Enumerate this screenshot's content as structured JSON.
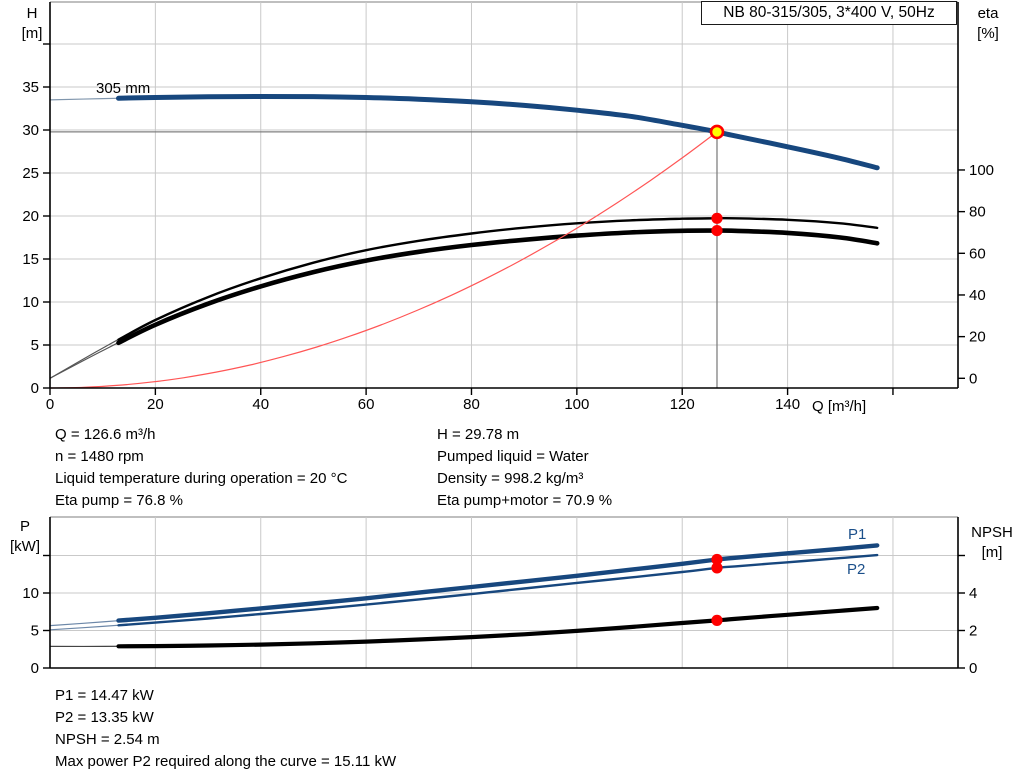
{
  "title_box": {
    "label": "NB 80-315/305, 3*400 V, 50Hz"
  },
  "labels": {
    "h": "H",
    "h_unit": "[m]",
    "eta": "eta",
    "eta_unit": "[%]",
    "q": "Q [m³/h]",
    "p": "P",
    "p_unit": "[kW]",
    "npsh": "NPSH",
    "npsh_unit": "[m]"
  },
  "colors": {
    "curve_blue": "#17477e",
    "curve_black": "#000000",
    "system_red": "#ff5555",
    "marker_red": "#fe0000",
    "duty_yellow": "#ffff00",
    "grid": "#c9c9c9",
    "duty_line": "#808080",
    "label_blue": "#1b4f8a",
    "frame": "#999999",
    "axis": "#000000"
  },
  "info_top": {
    "left": [
      "Q = 126.6 m³/h",
      "n = 1480 rpm",
      "Liquid temperature during operation = 20 °C",
      "Eta pump = 76.8 %"
    ],
    "right": [
      "H = 29.78 m",
      "Pumped liquid = Water",
      "Density = 998.2 kg/m³",
      "Eta pump+motor = 70.9 %"
    ]
  },
  "info_bottom": [
    "P1 = 14.47 kW",
    "P2 = 13.35 kW",
    "NPSH = 2.54 m",
    "Max power P2 required along the curve = 15.11 kW"
  ],
  "chart_data": [
    {
      "type": "line",
      "title": "QH curve with efficiency curves",
      "grid_on": true,
      "legend_position": "none",
      "x": {
        "label": "Q [m³/h]",
        "min": 0,
        "max": 172,
        "ticks": [
          0,
          20,
          40,
          60,
          80,
          100,
          120,
          140
        ],
        "ticks_unlabeled": [
          160
        ],
        "grid": [
          20,
          40,
          60,
          80,
          100,
          120,
          140,
          160
        ]
      },
      "y_left": {
        "label": "H [m]",
        "min": 0,
        "max": 45,
        "ticks": [
          0,
          5,
          10,
          15,
          20,
          25,
          30,
          35
        ],
        "ticks_unlabeled": [
          40
        ],
        "grid": [
          5,
          10,
          15,
          20,
          25,
          30,
          35,
          40
        ]
      },
      "y_right": {
        "label": "eta [%]",
        "min": 0,
        "max": 100,
        "ticks": [
          0,
          20,
          40,
          60,
          80,
          100
        ],
        "ticks_unlabeled": []
      },
      "series": [
        {
          "name": "305 mm",
          "axis": "H",
          "color": "curve_blue",
          "width": 5,
          "thin_color": "#8096ad",
          "thick_from": 13,
          "points": [
            [
              0,
              33.5
            ],
            [
              10,
              33.65
            ],
            [
              20,
              33.78
            ],
            [
              30,
              33.86
            ],
            [
              40,
              33.9
            ],
            [
              50,
              33.88
            ],
            [
              60,
              33.78
            ],
            [
              70,
              33.58
            ],
            [
              80,
              33.28
            ],
            [
              90,
              32.86
            ],
            [
              100,
              32.3
            ],
            [
              110,
              31.6
            ],
            [
              120,
              30.55
            ],
            [
              126.6,
              29.78
            ],
            [
              130,
              29.32
            ],
            [
              140,
              28.05
            ],
            [
              150,
              26.7
            ],
            [
              157,
              25.6
            ]
          ]
        },
        {
          "name": "eta pump",
          "axis": "eta",
          "color": "curve_black",
          "width": 2.4,
          "thin_color": "#555555",
          "thick_from": 13,
          "points": [
            [
              0,
              0
            ],
            [
              10,
              14.5
            ],
            [
              20,
              28
            ],
            [
              30,
              39
            ],
            [
              40,
              48
            ],
            [
              50,
              55.5
            ],
            [
              60,
              61.5
            ],
            [
              70,
              66
            ],
            [
              80,
              69.5
            ],
            [
              90,
              72.3
            ],
            [
              100,
              74.4
            ],
            [
              110,
              75.8
            ],
            [
              120,
              76.6
            ],
            [
              126.6,
              76.8
            ],
            [
              130,
              76.8
            ],
            [
              140,
              76.1
            ],
            [
              150,
              74.4
            ],
            [
              157,
              72.2
            ]
          ]
        },
        {
          "name": "eta pump+motor",
          "axis": "eta",
          "color": "curve_black",
          "width": 4.6,
          "thin_color": "#555555",
          "thick_from": 13,
          "points": [
            [
              0,
              0
            ],
            [
              10,
              13.3
            ],
            [
              20,
              25.7
            ],
            [
              30,
              35.8
            ],
            [
              40,
              44.1
            ],
            [
              50,
              51
            ],
            [
              60,
              56.5
            ],
            [
              70,
              60.7
            ],
            [
              80,
              64
            ],
            [
              90,
              66.5
            ],
            [
              100,
              68.5
            ],
            [
              110,
              70
            ],
            [
              120,
              70.8
            ],
            [
              126.6,
              70.9
            ],
            [
              130,
              70.8
            ],
            [
              140,
              69.8
            ],
            [
              150,
              67.6
            ],
            [
              157,
              64.8
            ]
          ]
        },
        {
          "name": "system curve",
          "axis": "H",
          "color": "system_red",
          "width": 1.1,
          "generate": "parabola",
          "q_end": 126.6,
          "h_end": 29.78
        }
      ],
      "duty_point": {
        "q": 126.6,
        "axis": "H",
        "value": 29.78
      },
      "markers": [
        {
          "q": 126.6,
          "axis": "eta",
          "value": 76.8
        },
        {
          "q": 126.6,
          "axis": "eta",
          "value": 70.9
        }
      ]
    },
    {
      "type": "line",
      "title": "Power and NPSH curves",
      "grid_on": true,
      "legend_position": "inline",
      "x": {
        "label": "",
        "min": 0,
        "max": 172,
        "ticks": [],
        "ticks_unlabeled": [],
        "grid": [
          20,
          40,
          60,
          80,
          100,
          120,
          140,
          160
        ]
      },
      "y_left": {
        "label": "P [kW]",
        "min": 0,
        "max": 20,
        "ticks": [
          0,
          5,
          10
        ],
        "ticks_unlabeled": [
          15
        ],
        "grid": [
          5,
          10,
          15
        ]
      },
      "y_right": {
        "label": "NPSH [m]",
        "min": 0,
        "max": 8,
        "ticks": [
          0,
          2,
          4
        ],
        "ticks_unlabeled": [
          6
        ]
      },
      "series": [
        {
          "name": "P1",
          "axis": "P",
          "color": "curve_blue",
          "width": 4.4,
          "thin_color": "#6c87a8",
          "thick_from": 13,
          "points": [
            [
              0,
              5.65
            ],
            [
              10,
              6.15
            ],
            [
              20,
              6.7
            ],
            [
              30,
              7.3
            ],
            [
              40,
              7.95
            ],
            [
              50,
              8.6
            ],
            [
              60,
              9.3
            ],
            [
              70,
              10.05
            ],
            [
              80,
              10.8
            ],
            [
              90,
              11.55
            ],
            [
              100,
              12.3
            ],
            [
              110,
              13.1
            ],
            [
              120,
              13.9
            ],
            [
              126.6,
              14.47
            ],
            [
              130,
              14.7
            ],
            [
              140,
              15.3
            ],
            [
              150,
              15.9
            ],
            [
              157,
              16.35
            ]
          ]
        },
        {
          "name": "P2",
          "axis": "P",
          "color": "curve_blue",
          "width": 2.4,
          "thin_color": "#6c87a8",
          "thick_from": 13,
          "points": [
            [
              0,
              5.1
            ],
            [
              10,
              5.55
            ],
            [
              20,
              6.05
            ],
            [
              30,
              6.6
            ],
            [
              40,
              7.2
            ],
            [
              50,
              7.8
            ],
            [
              60,
              8.45
            ],
            [
              70,
              9.15
            ],
            [
              80,
              9.85
            ],
            [
              90,
              10.6
            ],
            [
              100,
              11.35
            ],
            [
              110,
              12.05
            ],
            [
              120,
              12.8
            ],
            [
              126.6,
              13.35
            ],
            [
              130,
              13.55
            ],
            [
              140,
              14.1
            ],
            [
              150,
              14.65
            ],
            [
              157,
              15.05
            ]
          ]
        },
        {
          "name": "NPSH",
          "axis": "NPSH",
          "color": "curve_black",
          "width": 4.2,
          "thin_color": "#444444",
          "thick_from": 13,
          "points": [
            [
              0,
              1.15
            ],
            [
              10,
              1.15
            ],
            [
              20,
              1.17
            ],
            [
              30,
              1.2
            ],
            [
              40,
              1.25
            ],
            [
              50,
              1.32
            ],
            [
              60,
              1.41
            ],
            [
              70,
              1.52
            ],
            [
              80,
              1.65
            ],
            [
              90,
              1.8
            ],
            [
              100,
              1.98
            ],
            [
              110,
              2.18
            ],
            [
              120,
              2.4
            ],
            [
              126.6,
              2.54
            ],
            [
              130,
              2.62
            ],
            [
              140,
              2.84
            ],
            [
              150,
              3.05
            ],
            [
              157,
              3.2
            ]
          ]
        }
      ],
      "markers": [
        {
          "q": 126.6,
          "axis": "P",
          "value": 14.47
        },
        {
          "q": 126.6,
          "axis": "P",
          "value": 13.35
        },
        {
          "q": 126.6,
          "axis": "NPSH",
          "value": 2.54
        }
      ]
    }
  ]
}
